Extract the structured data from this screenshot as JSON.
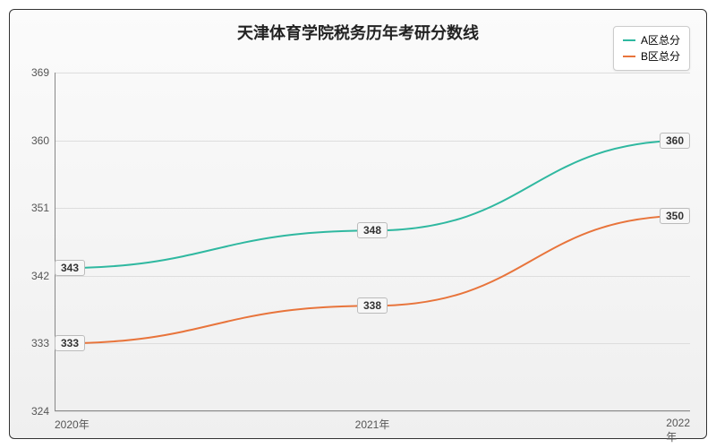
{
  "chart": {
    "type": "line",
    "title": "天津体育学院税务历年考研分数线",
    "title_fontsize": 18,
    "background_gradient": [
      "#fbfbfb",
      "#efefef"
    ],
    "border_color": "#333333",
    "grid_color": "#dddddd",
    "axis_color": "#888888",
    "label_fontsize": 12,
    "x": {
      "categories": [
        "2020年",
        "2021年",
        "2022年"
      ],
      "positions_pct": [
        0,
        50,
        100
      ]
    },
    "y": {
      "min": 324,
      "max": 369,
      "ticks": [
        324,
        333,
        342,
        351,
        360,
        369
      ],
      "tick_step": 9
    },
    "series": [
      {
        "name": "A区总分",
        "color": "#2fb8a0",
        "line_width": 2,
        "values": [
          343,
          348,
          360
        ],
        "curve": true
      },
      {
        "name": "B区总分",
        "color": "#e8743b",
        "line_width": 2,
        "values": [
          333,
          338,
          350
        ],
        "curve": true
      }
    ],
    "data_label_style": {
      "background": "#f7f7f7",
      "border_color": "#bbbbbb",
      "font_weight": "bold"
    },
    "legend": {
      "position": "top-right",
      "background": "#ffffff",
      "border_color": "#cccccc"
    }
  }
}
